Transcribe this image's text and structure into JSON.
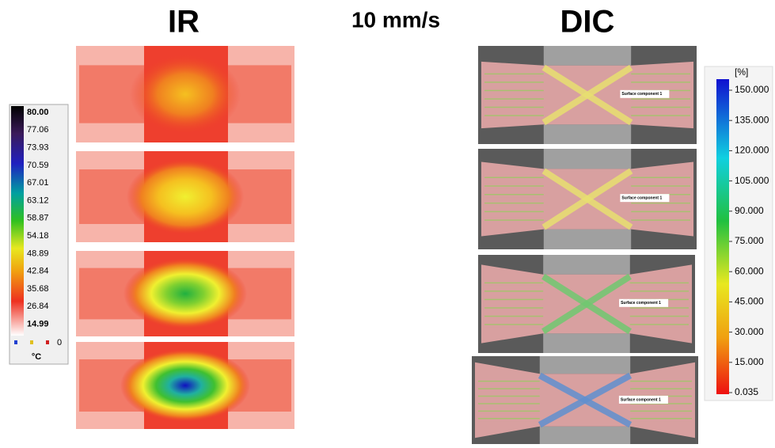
{
  "header": {
    "left_title": "IR",
    "center_title": "10 mm/s",
    "right_title": "DIC"
  },
  "ir_scale": {
    "labels": [
      "80.00",
      "77.06",
      "73.93",
      "70.59",
      "67.01",
      "63.12",
      "58.87",
      "54.18",
      "48.89",
      "42.84",
      "35.68",
      "26.84",
      "14.99"
    ],
    "footer_value": "0",
    "unit": "°C"
  },
  "dic_scale": {
    "unit": "[%]",
    "labels": [
      "150.000",
      "135.000",
      "120.000",
      "105.000",
      "90.000",
      "75.000",
      "60.000",
      "45.000",
      "30.000",
      "15.000",
      "0.035"
    ]
  },
  "dic_images": {
    "annotations": [
      "Surface component 1",
      "Surface component 1",
      "Surface component 1",
      "Surface component 1"
    ]
  }
}
